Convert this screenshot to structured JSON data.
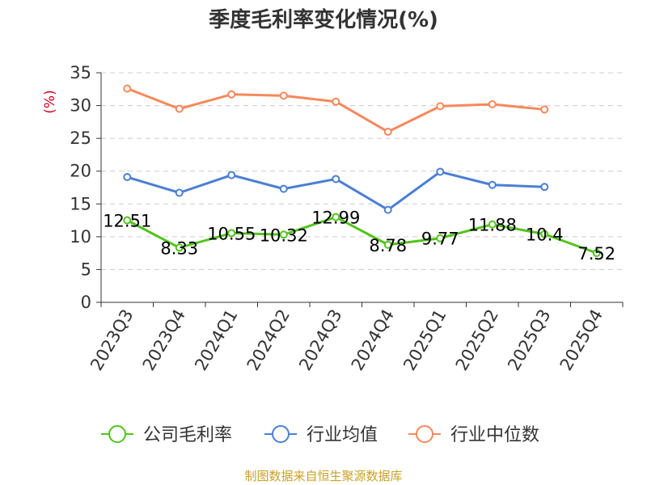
{
  "chart_data": {
    "type": "line",
    "title": "季度毛利率变化情况(%)",
    "ylabel": "(%)",
    "ylim": [
      0,
      35
    ],
    "yticks": [
      0,
      5,
      10,
      15,
      20,
      25,
      30,
      35
    ],
    "grid": true,
    "legend_position": "bottom",
    "categories": [
      "2023Q3",
      "2023Q4",
      "2024Q1",
      "2024Q2",
      "2024Q3",
      "2024Q4",
      "2025Q1",
      "2025Q2",
      "2025Q3",
      "2025Q4"
    ],
    "series": [
      {
        "name": "公司毛利率",
        "color": "#52c41a",
        "values": [
          12.51,
          8.33,
          10.55,
          10.32,
          12.99,
          8.78,
          9.77,
          11.88,
          10.4,
          7.52
        ],
        "labels": [
          "12.51",
          "8.33",
          "10.55",
          "10.32",
          "12.99",
          "8.78",
          "9.77",
          "11.88",
          "10.4",
          "7.52"
        ]
      },
      {
        "name": "行业均值",
        "color": "#4a7fd4",
        "values": [
          19.1,
          16.7,
          19.4,
          17.3,
          18.8,
          14.1,
          19.9,
          17.9,
          17.6,
          null
        ]
      },
      {
        "name": "行业中位数",
        "color": "#f5895b",
        "values": [
          32.6,
          29.5,
          31.7,
          31.5,
          30.6,
          26.0,
          29.9,
          30.2,
          29.4,
          null
        ]
      }
    ],
    "source": "制图数据来自恒生聚源数据库"
  }
}
